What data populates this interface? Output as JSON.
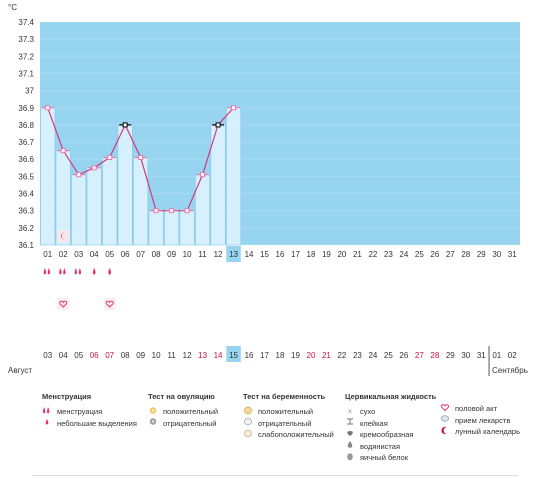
{
  "chart_data": {
    "type": "line",
    "y_unit": "°C",
    "ylim": [
      36.1,
      37.4
    ],
    "y_ticks": [
      "37.4",
      "37.3",
      "37.2",
      "37.1",
      "37",
      "36.9",
      "36.8",
      "36.7",
      "36.6",
      "36.5",
      "36.4",
      "36.3",
      "36.2",
      "36.1"
    ],
    "cycle_days": [
      "01",
      "02",
      "03",
      "04",
      "05",
      "06",
      "07",
      "08",
      "09",
      "10",
      "11",
      "12",
      "13",
      "14",
      "15",
      "16",
      "17",
      "18",
      "19",
      "20",
      "21",
      "22",
      "23",
      "24",
      "25",
      "26",
      "27",
      "28",
      "29",
      "30",
      "31"
    ],
    "current_cycle_day": "13",
    "series": [
      {
        "values": [
          36.9,
          36.65,
          36.51,
          36.55,
          36.61,
          36.8,
          36.61,
          36.3,
          36.3,
          36.3,
          36.51,
          36.8,
          36.9
        ],
        "marker_style": [
          "normal",
          "normal",
          "normal",
          "normal",
          "normal",
          "highlight",
          "normal",
          "normal",
          "normal",
          "normal",
          "normal",
          "highlight",
          "normal"
        ]
      }
    ],
    "date_labels": [
      "03",
      "04",
      "05",
      "06",
      "07",
      "08",
      "09",
      "10",
      "11",
      "12",
      "13",
      "14",
      "15",
      "16",
      "17",
      "18",
      "19",
      "20",
      "21",
      "22",
      "23",
      "24",
      "25",
      "26",
      "27",
      "28",
      "29",
      "30",
      "31",
      "01",
      "02"
    ],
    "weekend_dates": [
      "06",
      "07",
      "13",
      "14",
      "20",
      "21",
      "27",
      "28"
    ],
    "current_date": "15",
    "month_labels": [
      "Август",
      "Сентябрь"
    ],
    "events": {
      "menstruation": [
        "01",
        "02",
        "03",
        "04",
        "05"
      ],
      "lunar_calendar": [
        "02"
      ],
      "intercourse": [
        "02",
        "05"
      ]
    }
  },
  "colors": {
    "zone_background": "#96d4f0",
    "bar_fill": "#d6f0fd",
    "bar_stroke": "#82c5ea",
    "line": "#d4387a",
    "marker_border": "#e87ab0",
    "highlight_marker": "#000000",
    "current_day_box": "#96d4f0",
    "event_red": "#e8336a",
    "weekend_text": "#d0103a"
  },
  "legend": {
    "menstruation": {
      "title": "Менструация",
      "items": [
        {
          "icon": "menstruation-drops-icon",
          "label": "менструация"
        },
        {
          "icon": "light-spotting-drop-icon",
          "label": "небольшие выделения"
        }
      ]
    },
    "ovulation": {
      "title": "Тест на овуляцию",
      "items": [
        {
          "icon": "ovulation-positive-icon",
          "label": "положительный"
        },
        {
          "icon": "ovulation-negative-icon",
          "label": "отрицательный"
        }
      ]
    },
    "pregnancy": {
      "title": "Тест на беременность",
      "items": [
        {
          "icon": "pregnancy-positive-icon",
          "label": "положительный"
        },
        {
          "icon": "pregnancy-negative-icon",
          "label": "отрицательный"
        },
        {
          "icon": "pregnancy-weak-icon",
          "label": "слабоположительный"
        }
      ]
    },
    "cervical": {
      "title": "Цервикальная жидкость",
      "items": [
        {
          "icon": "dry-icon",
          "label": "сухо"
        },
        {
          "icon": "sticky-icon",
          "label": "клейкая"
        },
        {
          "icon": "creamy-icon",
          "label": "кремообразная"
        },
        {
          "icon": "watery-icon",
          "label": "водянистая"
        },
        {
          "icon": "egg-white-icon",
          "label": "яичный белок"
        }
      ]
    },
    "other": {
      "items": [
        {
          "icon": "heart-icon",
          "label": "половой акт"
        },
        {
          "icon": "pill-icon",
          "label": "прием лекарств"
        },
        {
          "icon": "moon-icon",
          "label": "лунный календарь"
        }
      ]
    }
  }
}
